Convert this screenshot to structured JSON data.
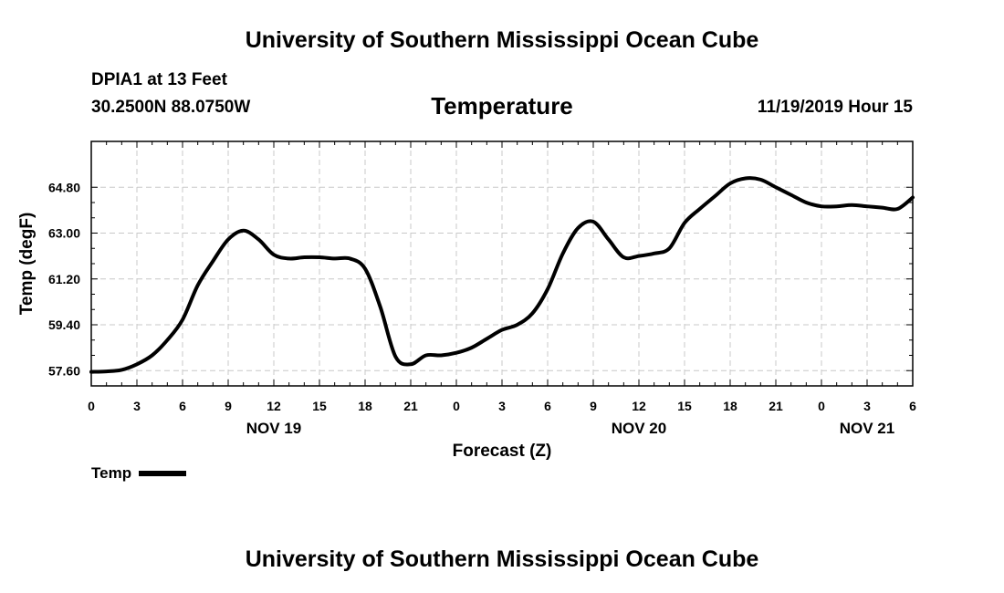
{
  "header": {
    "title": "University of Southern Mississippi Ocean Cube",
    "station": "DPIA1 at 13 Feet",
    "coords": "30.2500N 88.0750W",
    "datetime": "11/19/2019 Hour 15"
  },
  "footer": {
    "title": "University of Southern Mississippi Ocean Cube"
  },
  "chart_data": {
    "type": "line",
    "title": "Temperature",
    "xlabel": "Forecast (Z)",
    "ylabel": "Temp (degF)",
    "x_unit": "forecast hour (Z), starting NOV 19 00Z",
    "xlim": [
      0,
      54
    ],
    "ylim": [
      57.0,
      66.6
    ],
    "x_ticks": [
      0,
      3,
      6,
      9,
      12,
      15,
      18,
      21,
      24,
      27,
      30,
      33,
      36,
      39,
      42,
      45,
      48,
      51,
      54
    ],
    "x_tick_labels": [
      "0",
      "3",
      "6",
      "9",
      "12",
      "15",
      "18",
      "21",
      "0",
      "3",
      "6",
      "9",
      "12",
      "15",
      "18",
      "21",
      "0",
      "3",
      "6"
    ],
    "date_labels": [
      {
        "x": 12,
        "label": "NOV 19"
      },
      {
        "x": 36,
        "label": "NOV 20"
      },
      {
        "x": 51,
        "label": "NOV 21"
      }
    ],
    "y_ticks": [
      57.6,
      59.4,
      61.2,
      63.0,
      64.8
    ],
    "y_tick_labels": [
      "57.60",
      "59.40",
      "61.20",
      "63.00",
      "64.80"
    ],
    "grid": true,
    "legend": "bottom-left",
    "series": [
      {
        "name": "Temp",
        "color": "#000000",
        "x": [
          0,
          1,
          2,
          3,
          4,
          5,
          6,
          7,
          8,
          9,
          10,
          11,
          12,
          13,
          14,
          15,
          16,
          17,
          18,
          19,
          20,
          21,
          22,
          23,
          24,
          25,
          26,
          27,
          28,
          29,
          30,
          31,
          32,
          33,
          34,
          35,
          36,
          37,
          38,
          39,
          40,
          41,
          42,
          43,
          44,
          45,
          46,
          47,
          48,
          49,
          50,
          51,
          52,
          53,
          54
        ],
        "y": [
          57.55,
          57.57,
          57.63,
          57.85,
          58.2,
          58.8,
          59.6,
          60.95,
          61.9,
          62.75,
          63.1,
          62.75,
          62.15,
          62.0,
          62.05,
          62.05,
          62.0,
          62.0,
          61.6,
          60.1,
          58.15,
          57.85,
          58.2,
          58.2,
          58.3,
          58.5,
          58.85,
          59.2,
          59.4,
          59.85,
          60.8,
          62.2,
          63.2,
          63.45,
          62.75,
          62.05,
          62.1,
          62.2,
          62.4,
          63.4,
          63.95,
          64.45,
          64.95,
          65.15,
          65.1,
          64.8,
          64.5,
          64.2,
          64.05,
          64.05,
          64.1,
          64.05,
          64.0,
          63.95,
          64.4
        ]
      }
    ]
  }
}
